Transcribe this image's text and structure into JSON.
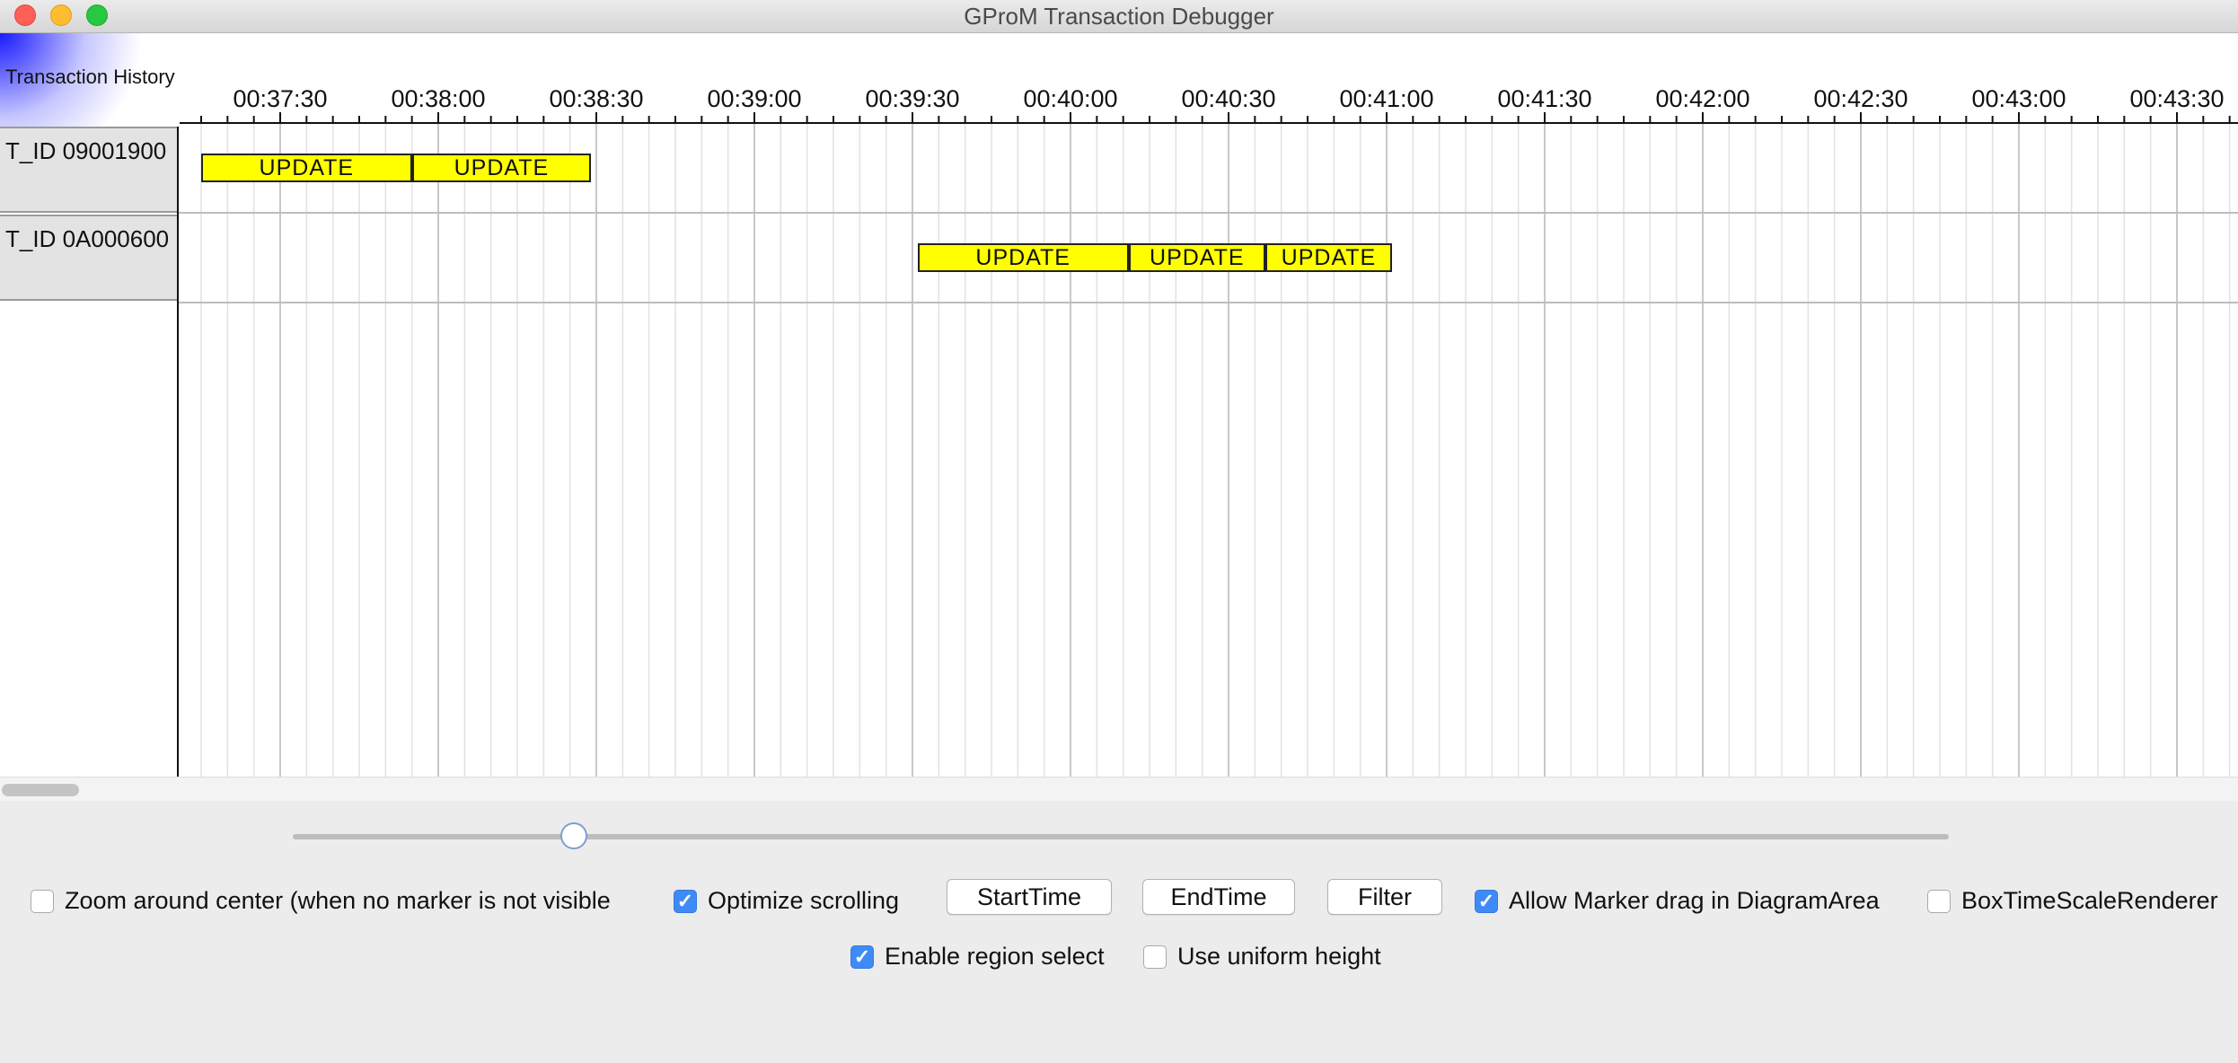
{
  "window": {
    "title": "GProM Transaction Debugger",
    "traffic_lights": {
      "close": "#fe5f57",
      "minimize": "#febc2e",
      "zoom": "#28c840"
    }
  },
  "diagram": {
    "corner_label": "Transaction History",
    "time_labels": [
      "00:37:30",
      "00:38:00",
      "00:38:30",
      "00:39:00",
      "00:39:30",
      "00:40:00",
      "00:40:30",
      "00:41:00",
      "00:41:30",
      "00:42:00",
      "00:42:30",
      "00:43:00",
      "00:43:30"
    ],
    "rows": [
      {
        "label": "T_ID 09001900",
        "events": [
          {
            "label": "UPDATE",
            "start_s": 2235,
            "end_s": 2275
          },
          {
            "label": "UPDATE",
            "start_s": 2275,
            "end_s": 2309
          }
        ]
      },
      {
        "label": "T_ID 0A000600",
        "events": [
          {
            "label": "UPDATE",
            "start_s": 2371,
            "end_s": 2411
          },
          {
            "label": "UPDATE",
            "start_s": 2411,
            "end_s": 2437
          },
          {
            "label": "UPDATE",
            "start_s": 2437,
            "end_s": 2461
          }
        ]
      }
    ],
    "bar_color": "#ffff00"
  },
  "zoom_slider": {
    "value_fraction": 0.17
  },
  "options": {
    "zoom_around_center": {
      "label": "Zoom around center (when no marker is not visible",
      "checked": false
    },
    "optimize_scrolling": {
      "label": "Optimize scrolling",
      "checked": true
    },
    "allow_marker_drag": {
      "label": "Allow Marker drag in DiagramArea",
      "checked": true
    },
    "box_time_scale_renderer": {
      "label": "BoxTimeScaleRenderer",
      "checked": false
    },
    "enable_region_select": {
      "label": "Enable region select",
      "checked": true
    },
    "use_uniform_height": {
      "label": "Use uniform height",
      "checked": false
    }
  },
  "buttons": {
    "start_time": "StartTime",
    "end_time": "EndTime",
    "filter": "Filter"
  },
  "accent_color": "#3f8bf5"
}
